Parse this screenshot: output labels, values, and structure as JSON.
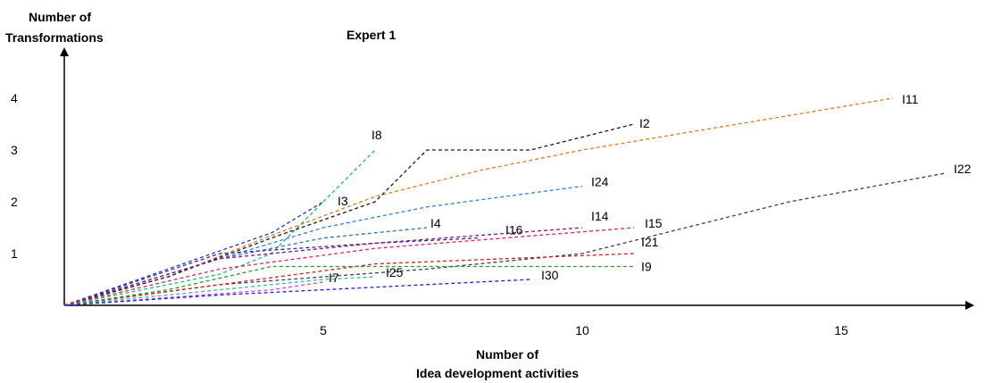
{
  "chart_data": {
    "type": "line",
    "title": "Expert 1",
    "ylabel_line1": "Number of",
    "ylabel_line2": "Transformations",
    "xlabel_line1": "Number of",
    "xlabel_line2": "Idea development activities",
    "xlim": [
      0,
      17.5
    ],
    "ylim": [
      0,
      4.4
    ],
    "x_ticks": [
      5,
      10,
      15
    ],
    "y_ticks": [
      1,
      2,
      3,
      4
    ],
    "grid": false,
    "series": [
      {
        "name": "I11",
        "color": "#e07b20",
        "points": [
          [
            0,
            0
          ],
          [
            2,
            0.55
          ],
          [
            4,
            1.35
          ],
          [
            6,
            2.1
          ],
          [
            8,
            2.6
          ],
          [
            10,
            3.0
          ],
          [
            13,
            3.5
          ],
          [
            16,
            4.0
          ]
        ]
      },
      {
        "name": "I2",
        "color": "#1a1a1a",
        "points": [
          [
            0,
            0
          ],
          [
            2,
            0.55
          ],
          [
            4,
            1.3
          ],
          [
            6,
            2.0
          ],
          [
            7,
            3.0
          ],
          [
            9,
            3.0
          ],
          [
            11,
            3.5
          ]
        ]
      },
      {
        "name": "I22",
        "color": "#444444",
        "points": [
          [
            0,
            0
          ],
          [
            3,
            0.4
          ],
          [
            7,
            0.7
          ],
          [
            10,
            1.0
          ],
          [
            14,
            2.0
          ],
          [
            17,
            2.55
          ]
        ]
      },
      {
        "name": "I8",
        "color": "#22b573",
        "points": [
          [
            0,
            0
          ],
          [
            3,
            0.6
          ],
          [
            4,
            1.0
          ],
          [
            6,
            3.0
          ]
        ]
      },
      {
        "name": "I3",
        "color": "#2233cc",
        "points": [
          [
            0,
            0
          ],
          [
            2,
            0.7
          ],
          [
            4,
            1.4
          ],
          [
            5,
            2.0
          ]
        ]
      },
      {
        "name": "I24",
        "color": "#2f7fe0",
        "points": [
          [
            0,
            0
          ],
          [
            3,
            0.9
          ],
          [
            5,
            1.5
          ],
          [
            7,
            1.9
          ],
          [
            10,
            2.3
          ]
        ]
      },
      {
        "name": "I4",
        "color": "#2f6fcc",
        "points": [
          [
            0,
            0
          ],
          [
            3,
            0.9
          ],
          [
            5,
            1.3
          ],
          [
            7,
            1.5
          ]
        ]
      },
      {
        "name": "I16",
        "color": "#3a2f8a",
        "points": [
          [
            0,
            0
          ],
          [
            3,
            1.0
          ],
          [
            6,
            1.2
          ],
          [
            8,
            1.3
          ]
        ]
      },
      {
        "name": "I14",
        "color": "#7a1a8a",
        "points": [
          [
            0,
            0
          ],
          [
            3,
            0.9
          ],
          [
            6,
            1.2
          ],
          [
            10,
            1.5
          ]
        ]
      },
      {
        "name": "I15",
        "color": "#e0206a",
        "points": [
          [
            0,
            0
          ],
          [
            3,
            0.7
          ],
          [
            6,
            1.1
          ],
          [
            11,
            1.5
          ]
        ]
      },
      {
        "name": "I21",
        "color": "#cc2222",
        "points": [
          [
            0,
            0
          ],
          [
            3,
            0.4
          ],
          [
            6,
            0.8
          ],
          [
            11,
            1.0
          ]
        ]
      },
      {
        "name": "I9",
        "color": "#2a9a2a",
        "points": [
          [
            0,
            0
          ],
          [
            2,
            0.3
          ],
          [
            4,
            0.75
          ],
          [
            7,
            0.75
          ],
          [
            11,
            0.75
          ]
        ]
      },
      {
        "name": "I7",
        "color": "#e040e0",
        "points": [
          [
            0,
            0
          ],
          [
            2,
            0.15
          ],
          [
            4,
            0.3
          ],
          [
            5,
            0.45
          ]
        ]
      },
      {
        "name": "I25",
        "color": "#3ab8a8",
        "points": [
          [
            0,
            0
          ],
          [
            3,
            0.3
          ],
          [
            5,
            0.5
          ],
          [
            6,
            0.55
          ]
        ]
      },
      {
        "name": "I30",
        "color": "#2222cc",
        "points": [
          [
            0,
            0
          ],
          [
            3,
            0.2
          ],
          [
            6,
            0.35
          ],
          [
            9,
            0.5
          ]
        ]
      }
    ]
  }
}
